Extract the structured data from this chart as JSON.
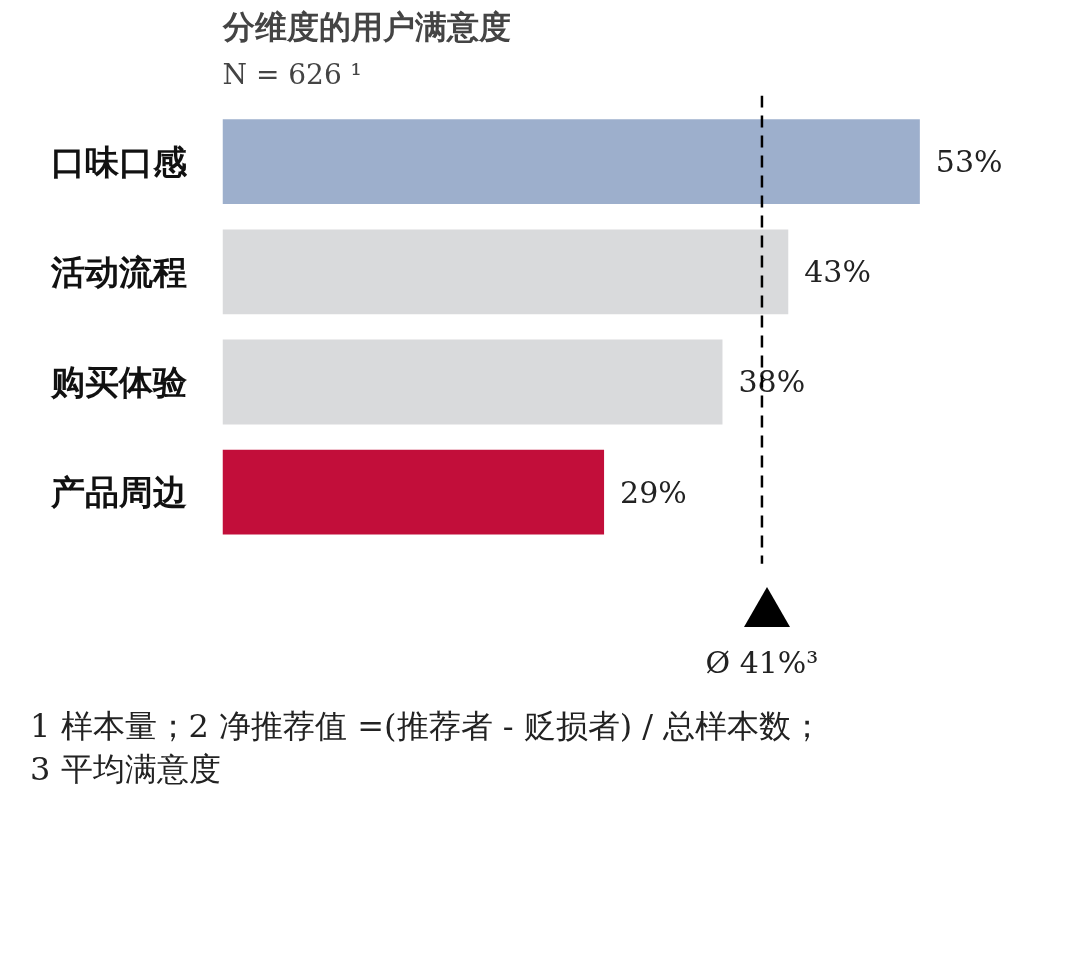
{
  "chart_data": {
    "type": "bar",
    "orientation": "horizontal",
    "title": "分维度的用户满意度",
    "subtitle": "N = 626 ¹",
    "categories": [
      "口味口感",
      "活动流程",
      "购买体验",
      "产品周边"
    ],
    "values": [
      53,
      43,
      38,
      29
    ],
    "colors": [
      "#9dafcc",
      "#d9dadc",
      "#d9dadc",
      "#c20e3a"
    ],
    "value_labels": [
      "53%",
      "43%",
      "38%",
      "29%"
    ],
    "tick_labels": "y",
    "grid": false,
    "ref_lines": [
      {
        "axis": "x",
        "value": 41,
        "label": "Ø 41%³",
        "color": "#000000",
        "line_style": "dashed"
      }
    ],
    "annotations": [
      "1 样本量；2 净推荐值 =(推荐者 - 贬损者) / 总样本数；",
      "3 平均满意度"
    ]
  }
}
